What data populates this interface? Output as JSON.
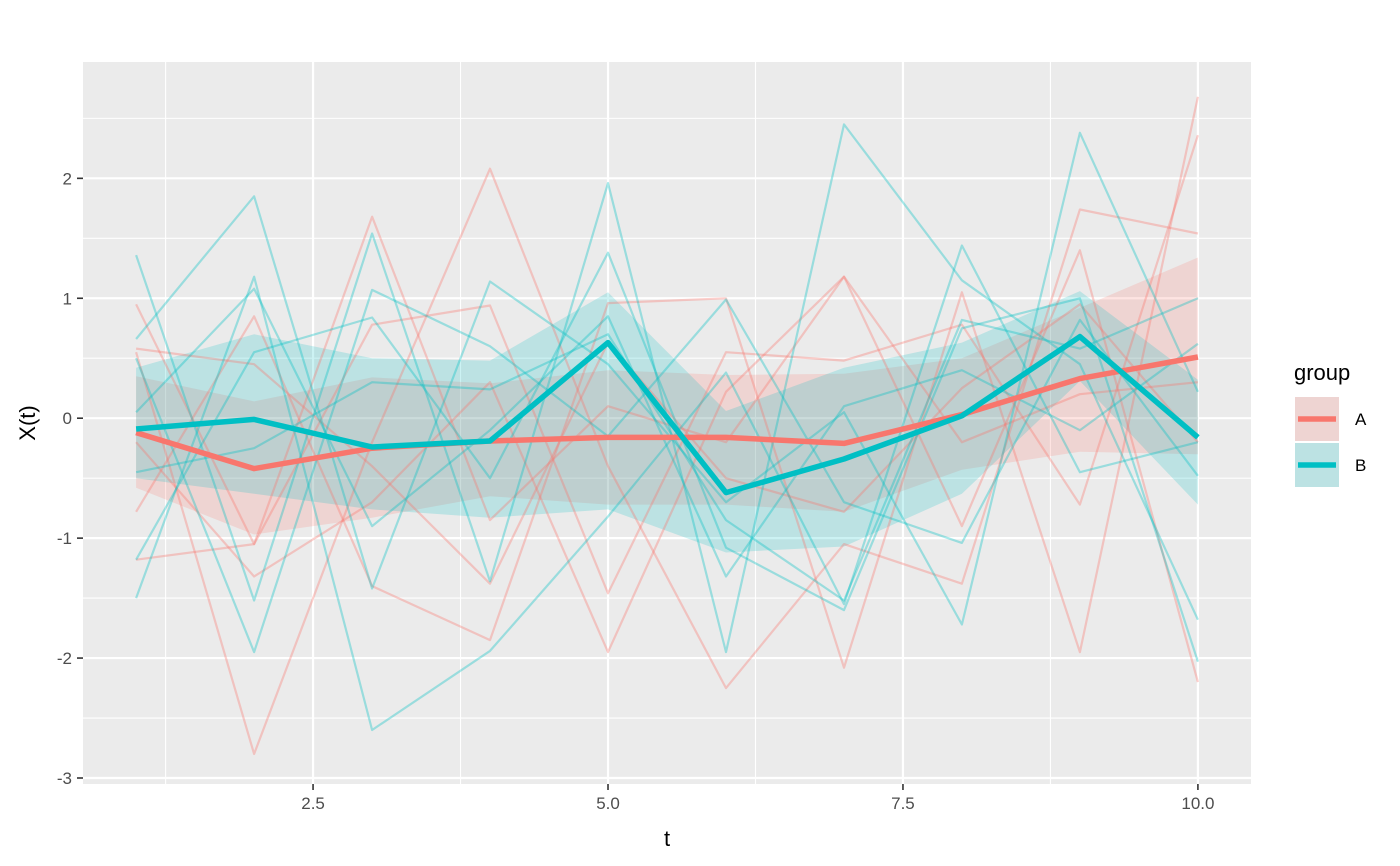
{
  "chart_data": {
    "type": "line",
    "title": "",
    "xlabel": "t",
    "ylabel": "X(t)",
    "xlim": [
      0.55,
      10.45
    ],
    "ylim": [
      -3.05,
      2.97
    ],
    "x_ticks": [
      2.5,
      5.0,
      7.5,
      10.0
    ],
    "x_tick_labels": [
      "2.5",
      "5.0",
      "7.5",
      "10.0"
    ],
    "y_ticks": [
      -3,
      -2,
      -1,
      0,
      1,
      2
    ],
    "y_tick_labels": [
      "-3",
      "-2",
      "-1",
      "0",
      "1",
      "2"
    ],
    "grid": true,
    "legend": {
      "title": "group",
      "placement": "right",
      "entries": [
        "A",
        "B"
      ]
    },
    "colors": {
      "A": "#F8766D",
      "B": "#00BFC4",
      "panel": "#EBEBEB",
      "grid": "#FFFFFF"
    },
    "x": [
      1,
      2,
      3,
      4,
      5,
      6,
      7,
      8,
      9,
      10
    ],
    "series": [
      {
        "name": "A",
        "mean": [
          -0.12,
          -0.42,
          -0.25,
          -0.19,
          -0.16,
          -0.16,
          -0.21,
          0.03,
          0.33,
          0.51
        ],
        "band_lower": [
          -0.58,
          -0.97,
          -0.83,
          -0.65,
          -0.72,
          -0.72,
          -0.78,
          -0.43,
          -0.28,
          -0.3
        ],
        "band_upper": [
          0.35,
          0.14,
          0.34,
          0.29,
          0.4,
          0.36,
          0.37,
          0.5,
          0.92,
          1.34
        ],
        "trajectories": [
          [
            0.95,
            -1.05,
            1.68,
            -0.85,
            0.1,
            -0.2,
            1.18,
            -0.9,
            1.4,
            -2.2
          ],
          [
            0.55,
            -2.8,
            -0.2,
            2.08,
            -0.4,
            -2.25,
            -1.05,
            -1.38,
            1.74,
            1.54
          ],
          [
            -0.78,
            0.85,
            -1.4,
            -1.85,
            0.96,
            1.0,
            -2.08,
            1.05,
            -1.95,
            2.68
          ],
          [
            -1.18,
            -1.05,
            0.78,
            0.94,
            -1.46,
            0.55,
            0.48,
            0.78,
            -0.72,
            2.36
          ],
          [
            0.58,
            0.45,
            -0.4,
            -1.38,
            0.63,
            -0.5,
            -0.78,
            0.25,
            0.95,
            -0.2
          ],
          [
            -0.2,
            -1.32,
            -0.7,
            0.3,
            -1.95,
            0.22,
            1.18,
            -0.2,
            0.2,
            0.3
          ]
        ]
      },
      {
        "name": "B",
        "mean": [
          -0.09,
          -0.01,
          -0.24,
          -0.19,
          0.63,
          -0.62,
          -0.34,
          0.02,
          0.68,
          -0.16
        ],
        "band_lower": [
          -0.5,
          -0.63,
          -0.76,
          -0.83,
          -0.76,
          -1.12,
          -1.07,
          -0.63,
          0.31,
          -0.72
        ],
        "band_upper": [
          0.42,
          0.7,
          0.5,
          0.48,
          1.05,
          0.06,
          0.42,
          0.63,
          1.06,
          0.32
        ],
        "trajectories": [
          [
            1.36,
            -1.52,
            1.54,
            -1.36,
            1.96,
            -1.95,
            2.45,
            1.15,
            0.45,
            -1.68
          ],
          [
            -1.5,
            1.18,
            -2.6,
            -1.94,
            -0.82,
            0.38,
            -1.55,
            1.44,
            -0.45,
            -0.2
          ],
          [
            0.66,
            1.85,
            -1.42,
            1.14,
            0.45,
            -0.7,
            0.05,
            -1.72,
            2.38,
            0.22
          ],
          [
            -1.18,
            0.55,
            0.84,
            -0.5,
            1.38,
            -1.08,
            -1.6,
            0.75,
            1.0,
            -2.03
          ],
          [
            0.5,
            -1.95,
            1.07,
            0.6,
            -0.15,
            0.99,
            -0.7,
            -1.04,
            0.82,
            -0.48
          ],
          [
            0.05,
            1.08,
            -0.9,
            -0.1,
            0.85,
            -1.32,
            0.1,
            0.4,
            -0.1,
            0.62
          ],
          [
            -0.45,
            -0.25,
            0.3,
            0.24,
            0.7,
            -0.85,
            -1.52,
            0.82,
            0.58,
            1.0
          ]
        ]
      }
    ]
  }
}
